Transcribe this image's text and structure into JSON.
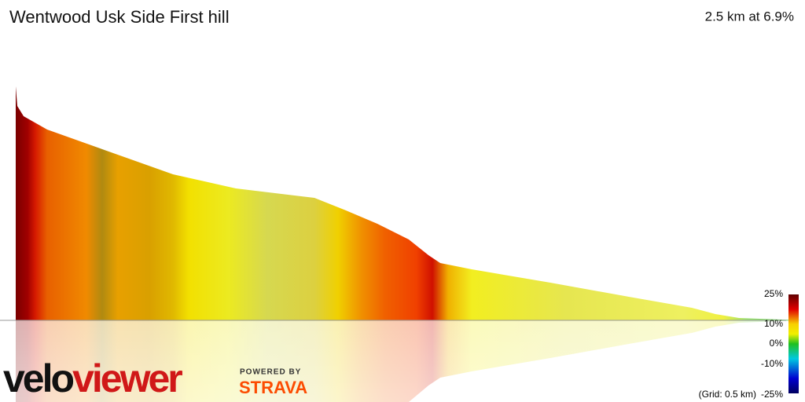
{
  "header": {
    "title": "Wentwood Usk Side First hill",
    "summary": "2.5 km at 6.9%"
  },
  "legend": {
    "labels": [
      "25%",
      "10%",
      "0%",
      "-10%",
      "-25%"
    ],
    "grid_note": "(Grid: 0.5 km)"
  },
  "branding": {
    "logo_first": "velo",
    "logo_second": "viewer",
    "powered_by": "POWERED BY",
    "strava": "STRAVA"
  }
}
